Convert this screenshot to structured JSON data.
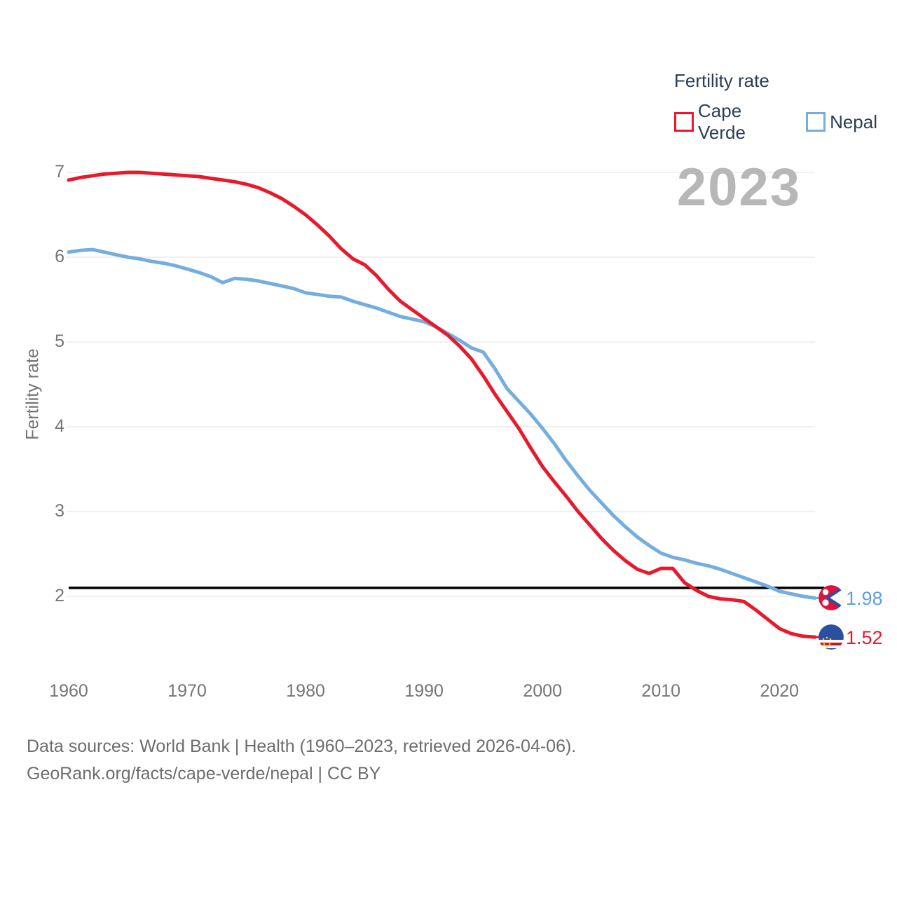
{
  "legend": {
    "title": "Fertility rate",
    "items": [
      {
        "label": "Cape Verde",
        "color": "#e8192d"
      },
      {
        "label": "Nepal",
        "color": "#74aede"
      }
    ]
  },
  "watermark": "2023",
  "y_axis_title": "Fertility rate",
  "end_labels": {
    "nepal": "1.98",
    "cape_verde": "1.52"
  },
  "footer": {
    "line1": "Data sources: World Bank | Health (1960–2023, retrieved 2026-04-06).",
    "line2": "GeoRank.org/facts/cape-verde/nepal | CC BY"
  },
  "colors": {
    "cape_verde": "#e8192d",
    "nepal": "#74aede",
    "replacement_line": "#000000",
    "gridline": "#ebebeb",
    "tick_text": "#757575",
    "watermark_text": "#b7b7b7"
  },
  "chart_data": {
    "type": "line",
    "title": "Fertility rate",
    "xlabel": "",
    "ylabel": "Fertility rate",
    "x_start": 1960,
    "x_end": 2023,
    "xticks": [
      1960,
      1970,
      1980,
      1990,
      2000,
      2010,
      2020
    ],
    "yticks": [
      2,
      3,
      4,
      5,
      6,
      7
    ],
    "ylim_top": 7,
    "replacement_line_value": 2.1,
    "legend_position": "top-right",
    "grid": "horizontal",
    "x": [
      1960,
      1961,
      1962,
      1963,
      1964,
      1965,
      1966,
      1967,
      1968,
      1969,
      1970,
      1971,
      1972,
      1973,
      1974,
      1975,
      1976,
      1977,
      1978,
      1979,
      1980,
      1981,
      1982,
      1983,
      1984,
      1985,
      1986,
      1987,
      1988,
      1989,
      1990,
      1991,
      1992,
      1993,
      1994,
      1995,
      1996,
      1997,
      1998,
      1999,
      2000,
      2001,
      2002,
      2003,
      2004,
      2005,
      2006,
      2007,
      2008,
      2009,
      2010,
      2011,
      2012,
      2013,
      2014,
      2015,
      2016,
      2017,
      2018,
      2019,
      2020,
      2021,
      2022,
      2023
    ],
    "series": [
      {
        "name": "Nepal",
        "color": "#74aede",
        "end_value": 1.98,
        "values": [
          6.06,
          6.08,
          6.09,
          6.06,
          6.03,
          6.0,
          5.98,
          5.95,
          5.93,
          5.9,
          5.86,
          5.82,
          5.77,
          5.7,
          5.75,
          5.74,
          5.72,
          5.69,
          5.66,
          5.63,
          5.58,
          5.56,
          5.54,
          5.53,
          5.48,
          5.44,
          5.4,
          5.35,
          5.3,
          5.27,
          5.24,
          5.18,
          5.1,
          5.02,
          4.93,
          4.88,
          4.68,
          4.45,
          4.3,
          4.15,
          3.98,
          3.8,
          3.6,
          3.42,
          3.25,
          3.1,
          2.95,
          2.82,
          2.7,
          2.6,
          2.51,
          2.46,
          2.43,
          2.39,
          2.36,
          2.32,
          2.27,
          2.22,
          2.17,
          2.12,
          2.06,
          2.03,
          2.0,
          1.98
        ]
      },
      {
        "name": "Cape Verde",
        "color": "#e8192d",
        "end_value": 1.52,
        "values": [
          6.91,
          6.94,
          6.96,
          6.98,
          6.99,
          7.0,
          7.0,
          6.99,
          6.98,
          6.97,
          6.96,
          6.95,
          6.93,
          6.91,
          6.89,
          6.86,
          6.82,
          6.76,
          6.69,
          6.6,
          6.5,
          6.38,
          6.25,
          6.1,
          5.98,
          5.91,
          5.78,
          5.62,
          5.48,
          5.38,
          5.28,
          5.18,
          5.08,
          4.95,
          4.8,
          4.6,
          4.38,
          4.18,
          3.98,
          3.75,
          3.53,
          3.35,
          3.18,
          3.0,
          2.84,
          2.68,
          2.54,
          2.42,
          2.32,
          2.27,
          2.33,
          2.33,
          2.16,
          2.07,
          2.0,
          1.97,
          1.96,
          1.94,
          1.84,
          1.73,
          1.62,
          1.56,
          1.53,
          1.52
        ]
      }
    ]
  }
}
